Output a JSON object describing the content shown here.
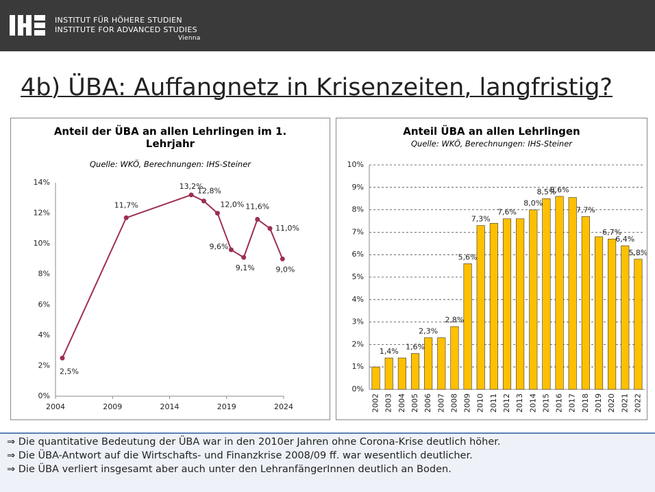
{
  "header": {
    "line1": "INSTITUT FÜR HÖHERE STUDIEN",
    "line2": "INSTITUTE FOR ADVANCED STUDIES",
    "line3": "Vienna"
  },
  "slide_title": "4b) ÜBA: Auffangnetz in Krisenzeiten, langfristig?",
  "chart_data": [
    {
      "type": "line",
      "title": "Anteil der ÜBA an allen Lehrlingen im 1. Lehrjahr",
      "subtitle": "Quelle: WKÖ, Berechnungen: IHS-Steiner",
      "x": [
        2004.6,
        2010.2,
        2015.9,
        2017.0,
        2018.2,
        2019.4,
        2020.5,
        2021.7,
        2022.8,
        2023.9
      ],
      "values": [
        2.5,
        11.7,
        13.2,
        12.8,
        12.0,
        9.6,
        9.1,
        11.6,
        11.0,
        9.0
      ],
      "value_labels": [
        "2,5%",
        "11,7%",
        "13,2%",
        "12,8%",
        "12,0%",
        "9,6%",
        "9,1%",
        "11,6%",
        "11,0%",
        "9,0%"
      ],
      "color": "#9c2f4f",
      "xlim": [
        2004,
        2024
      ],
      "xticks": [
        2004,
        2009,
        2014,
        2019,
        2024
      ],
      "ylim": [
        0,
        14
      ],
      "yticks": [
        {
          "value": 0,
          "label": "0%"
        },
        {
          "value": 2,
          "label": "2%"
        },
        {
          "value": 4,
          "label": "4%"
        },
        {
          "value": 6,
          "label": "6%"
        },
        {
          "value": 8,
          "label": "8%"
        },
        {
          "value": 10,
          "label": "10%"
        },
        {
          "value": 12,
          "label": "12%"
        },
        {
          "value": 14,
          "label": "14%"
        }
      ],
      "grid": false
    },
    {
      "type": "bar",
      "title": "Anteil ÜBA an allen Lehrlingen",
      "subtitle": "Quelle: WKÖ, Berechnungen: IHS-Steiner",
      "categories": [
        "2002",
        "2003",
        "2004",
        "2005",
        "2006",
        "2007",
        "2008",
        "2009",
        "2010",
        "2011",
        "2012",
        "2013",
        "2014",
        "2015",
        "2016",
        "2017",
        "2018",
        "2019",
        "2020",
        "2021",
        "2022"
      ],
      "values": [
        1.0,
        1.4,
        1.4,
        1.6,
        2.3,
        2.3,
        2.8,
        5.6,
        7.3,
        7.4,
        7.6,
        7.6,
        8.0,
        8.5,
        8.6,
        8.55,
        7.7,
        6.8,
        6.7,
        6.4,
        5.8
      ],
      "value_labels": [
        null,
        "1,4%",
        null,
        "1,6%",
        "2,3%",
        null,
        "2,8%",
        "5,6%",
        "7,3%",
        null,
        "7,6%",
        null,
        "8,0%",
        "8,5%",
        "8,6%",
        null,
        "7,7%",
        null,
        "6,7%",
        "6,4%",
        "5,8%"
      ],
      "color": "#ffc000",
      "ylim": [
        0,
        10
      ],
      "yticks": [
        {
          "value": 0,
          "label": "0%"
        },
        {
          "value": 1,
          "label": "1%"
        },
        {
          "value": 2,
          "label": "2%"
        },
        {
          "value": 3,
          "label": "3%"
        },
        {
          "value": 4,
          "label": "4%"
        },
        {
          "value": 5,
          "label": "5%"
        },
        {
          "value": 6,
          "label": "6%"
        },
        {
          "value": 7,
          "label": "7%"
        },
        {
          "value": 8,
          "label": "8%"
        },
        {
          "value": 9,
          "label": "9%"
        },
        {
          "value": 10,
          "label": "10%"
        }
      ],
      "grid": true
    }
  ],
  "bullets": [
    "⇒ Die quantitative Bedeutung der ÜBA war in den 2010er Jahren ohne Corona-Krise deutlich höher.",
    "⇒ Die ÜBA-Antwort auf die Wirtschafts- und Finanzkrise 2008/09 ff. war wesentlich deutlicher.",
    "⇒ Die ÜBA verliert insgesamt aber auch unter den LehranfängerInnen deutlich an Boden."
  ]
}
